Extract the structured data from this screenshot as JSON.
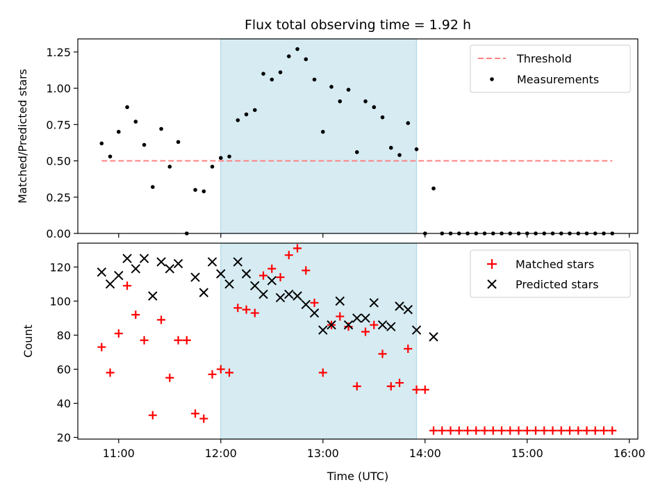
{
  "chart_data": [
    {
      "type": "scatter",
      "panel": "top",
      "title": "Flux total observing time = 1.92 h",
      "ylabel": "Matched/Predicted stars",
      "xlabel": "",
      "xlim": [
        "10:36",
        "16:05"
      ],
      "ylim": [
        0,
        1.34
      ],
      "x_tick_labels": [
        "11:00",
        "12:00",
        "13:00",
        "14:00",
        "15:00",
        "16:00"
      ],
      "y_ticks": [
        0,
        0.25,
        0.5,
        0.75,
        1.0,
        1.25
      ],
      "y_tick_labels": [
        "0.00",
        "0.25",
        "0.50",
        "0.75",
        "1.00",
        "1.25"
      ],
      "grid": false,
      "legend": "top-right",
      "legend_entries": [
        "Threshold",
        "Measurements"
      ],
      "shaded_interval": {
        "start": "12:00",
        "end": "13:55",
        "color": "#add8e6"
      },
      "threshold": {
        "name": "Threshold",
        "value": 0.5,
        "x_start": "10:50",
        "x_end": "15:50",
        "color": "#ff8080",
        "style": "dashed"
      },
      "series": [
        {
          "name": "Measurements",
          "color": "#000000",
          "marker": "dot",
          "points": [
            [
              "10:50",
              0.62
            ],
            [
              "10:55",
              0.53
            ],
            [
              "11:00",
              0.7
            ],
            [
              "11:05",
              0.87
            ],
            [
              "11:10",
              0.77
            ],
            [
              "11:15",
              0.61
            ],
            [
              "11:20",
              0.32
            ],
            [
              "11:25",
              0.72
            ],
            [
              "11:30",
              0.46
            ],
            [
              "11:35",
              0.63
            ],
            [
              "11:40",
              0.0
            ],
            [
              "11:45",
              0.3
            ],
            [
              "11:50",
              0.29
            ],
            [
              "11:55",
              0.46
            ],
            [
              "12:00",
              0.52
            ],
            [
              "12:05",
              0.53
            ],
            [
              "12:10",
              0.78
            ],
            [
              "12:15",
              0.82
            ],
            [
              "12:20",
              0.85
            ],
            [
              "12:25",
              1.1
            ],
            [
              "12:30",
              1.06
            ],
            [
              "12:35",
              1.11
            ],
            [
              "12:40",
              1.22
            ],
            [
              "12:45",
              1.27
            ],
            [
              "12:50",
              1.2
            ],
            [
              "12:55",
              1.06
            ],
            [
              "13:00",
              0.7
            ],
            [
              "13:05",
              1.01
            ],
            [
              "13:10",
              0.91
            ],
            [
              "13:15",
              0.99
            ],
            [
              "13:20",
              0.56
            ],
            [
              "13:25",
              0.91
            ],
            [
              "13:30",
              0.87
            ],
            [
              "13:35",
              0.8
            ],
            [
              "13:40",
              0.59
            ],
            [
              "13:45",
              0.54
            ],
            [
              "13:50",
              0.76
            ],
            [
              "13:55",
              0.58
            ],
            [
              "14:00",
              0.0
            ],
            [
              "14:05",
              0.31
            ],
            [
              "14:10",
              0.0
            ],
            [
              "14:15",
              0.0
            ],
            [
              "14:20",
              0.0
            ],
            [
              "14:25",
              0.0
            ],
            [
              "14:30",
              0.0
            ],
            [
              "14:35",
              0.0
            ],
            [
              "14:40",
              0.0
            ],
            [
              "14:45",
              0.0
            ],
            [
              "14:50",
              0.0
            ],
            [
              "14:55",
              0.0
            ],
            [
              "15:00",
              0.0
            ],
            [
              "15:05",
              0.0
            ],
            [
              "15:10",
              0.0
            ],
            [
              "15:15",
              0.0
            ],
            [
              "15:20",
              0.0
            ],
            [
              "15:25",
              0.0
            ],
            [
              "15:30",
              0.0
            ],
            [
              "15:35",
              0.0
            ],
            [
              "15:40",
              0.0
            ],
            [
              "15:45",
              0.0
            ],
            [
              "15:50",
              0.0
            ]
          ]
        }
      ]
    },
    {
      "type": "scatter",
      "panel": "bottom",
      "title": "",
      "ylabel": "Count",
      "xlabel": "Time (UTC)",
      "xlim": [
        "10:36",
        "16:05"
      ],
      "ylim": [
        19,
        134
      ],
      "x_tick_labels": [
        "11:00",
        "12:00",
        "13:00",
        "14:00",
        "15:00",
        "16:00"
      ],
      "y_ticks": [
        20,
        40,
        60,
        80,
        100,
        120
      ],
      "y_tick_labels": [
        "20",
        "40",
        "60",
        "80",
        "100",
        "120"
      ],
      "grid": false,
      "legend": "top-right",
      "legend_entries": [
        "Matched stars",
        "Predicted stars"
      ],
      "shaded_interval": {
        "start": "12:00",
        "end": "13:55",
        "color": "#add8e6"
      },
      "series": [
        {
          "name": "Matched stars",
          "color": "#ff0000",
          "marker": "plus",
          "points": [
            [
              "10:50",
              73
            ],
            [
              "10:55",
              58
            ],
            [
              "11:00",
              81
            ],
            [
              "11:05",
              109
            ],
            [
              "11:10",
              92
            ],
            [
              "11:15",
              77
            ],
            [
              "11:20",
              33
            ],
            [
              "11:25",
              89
            ],
            [
              "11:30",
              55
            ],
            [
              "11:35",
              77
            ],
            [
              "11:40",
              77
            ],
            [
              "11:45",
              34
            ],
            [
              "11:50",
              31
            ],
            [
              "11:55",
              57
            ],
            [
              "12:00",
              60
            ],
            [
              "12:05",
              58
            ],
            [
              "12:10",
              96
            ],
            [
              "12:15",
              95
            ],
            [
              "12:20",
              93
            ],
            [
              "12:25",
              115
            ],
            [
              "12:30",
              119
            ],
            [
              "12:35",
              114
            ],
            [
              "12:40",
              127
            ],
            [
              "12:45",
              131
            ],
            [
              "12:50",
              118
            ],
            [
              "12:55",
              99
            ],
            [
              "13:00",
              58
            ],
            [
              "13:05",
              86
            ],
            [
              "13:10",
              91
            ],
            [
              "13:15",
              85
            ],
            [
              "13:20",
              50
            ],
            [
              "13:25",
              82
            ],
            [
              "13:30",
              86
            ],
            [
              "13:35",
              69
            ],
            [
              "13:40",
              50
            ],
            [
              "13:45",
              52
            ],
            [
              "13:50",
              72
            ],
            [
              "13:55",
              48
            ],
            [
              "14:00",
              48
            ],
            [
              "14:05",
              24
            ],
            [
              "14:10",
              24
            ],
            [
              "14:15",
              24
            ],
            [
              "14:20",
              24
            ],
            [
              "14:25",
              24
            ],
            [
              "14:30",
              24
            ],
            [
              "14:35",
              24
            ],
            [
              "14:40",
              24
            ],
            [
              "14:45",
              24
            ],
            [
              "14:50",
              24
            ],
            [
              "14:55",
              24
            ],
            [
              "15:00",
              24
            ],
            [
              "15:05",
              24
            ],
            [
              "15:10",
              24
            ],
            [
              "15:15",
              24
            ],
            [
              "15:20",
              24
            ],
            [
              "15:25",
              24
            ],
            [
              "15:30",
              24
            ],
            [
              "15:35",
              24
            ],
            [
              "15:40",
              24
            ],
            [
              "15:45",
              24
            ],
            [
              "15:50",
              24
            ]
          ]
        },
        {
          "name": "Predicted stars",
          "color": "#000000",
          "marker": "x",
          "points": [
            [
              "10:50",
              117
            ],
            [
              "10:55",
              110
            ],
            [
              "11:00",
              115
            ],
            [
              "11:05",
              125
            ],
            [
              "11:10",
              119
            ],
            [
              "11:15",
              125
            ],
            [
              "11:20",
              103
            ],
            [
              "11:25",
              123
            ],
            [
              "11:30",
              119
            ],
            [
              "11:35",
              122
            ],
            [
              "11:45",
              114
            ],
            [
              "11:50",
              105
            ],
            [
              "11:55",
              123
            ],
            [
              "12:00",
              116
            ],
            [
              "12:05",
              110
            ],
            [
              "12:10",
              123
            ],
            [
              "12:15",
              116
            ],
            [
              "12:20",
              109
            ],
            [
              "12:25",
              104
            ],
            [
              "12:30",
              112
            ],
            [
              "12:35",
              102
            ],
            [
              "12:40",
              104
            ],
            [
              "12:45",
              103
            ],
            [
              "12:50",
              98
            ],
            [
              "12:55",
              93
            ],
            [
              "13:00",
              83
            ],
            [
              "13:05",
              86
            ],
            [
              "13:10",
              100
            ],
            [
              "13:15",
              86
            ],
            [
              "13:20",
              90
            ],
            [
              "13:25",
              90
            ],
            [
              "13:30",
              99
            ],
            [
              "13:35",
              86
            ],
            [
              "13:40",
              85
            ],
            [
              "13:45",
              97
            ],
            [
              "13:50",
              95
            ],
            [
              "13:55",
              83
            ],
            [
              "14:05",
              79
            ]
          ]
        }
      ]
    }
  ]
}
